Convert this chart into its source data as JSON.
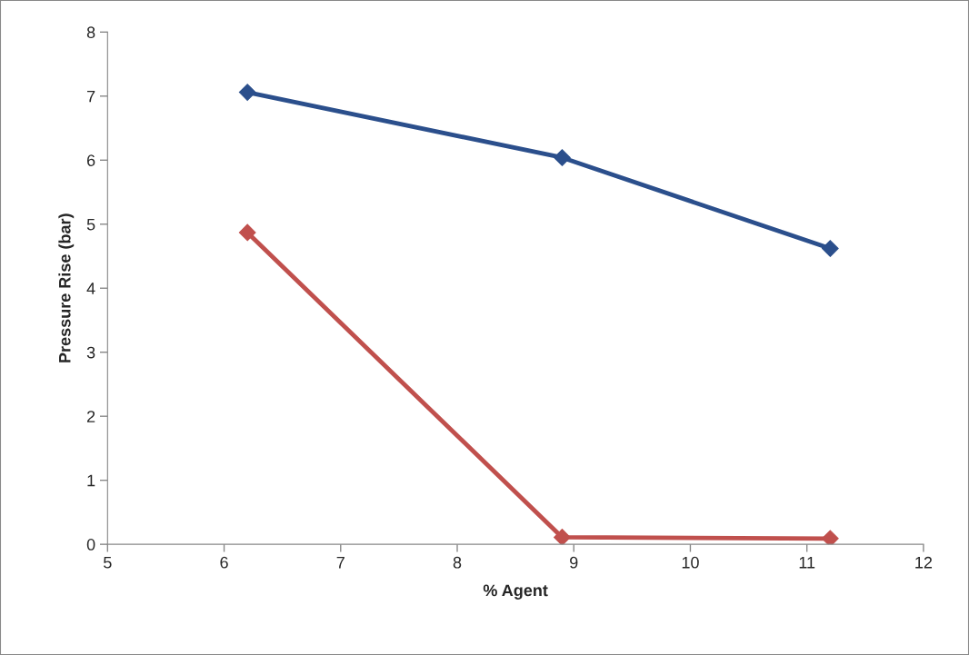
{
  "chart_data": {
    "type": "line",
    "xlabel": "% Agent",
    "ylabel": "Pressure Rise (bar)",
    "x": [
      6.2,
      8.9,
      11.2
    ],
    "series": [
      {
        "color": "#2b4f8c",
        "values": [
          7.06,
          6.04,
          4.62
        ]
      },
      {
        "color": "#c0504d",
        "values": [
          4.87,
          0.11,
          0.09
        ]
      }
    ],
    "xlim": [
      5,
      12
    ],
    "xticks": [
      5,
      6,
      7,
      8,
      9,
      10,
      11,
      12
    ],
    "ylim": [
      0,
      8
    ],
    "yticks": [
      0,
      1,
      2,
      3,
      4,
      5,
      6,
      7,
      8
    ],
    "grid": false,
    "marker": "diamond",
    "line_style": "solid"
  }
}
